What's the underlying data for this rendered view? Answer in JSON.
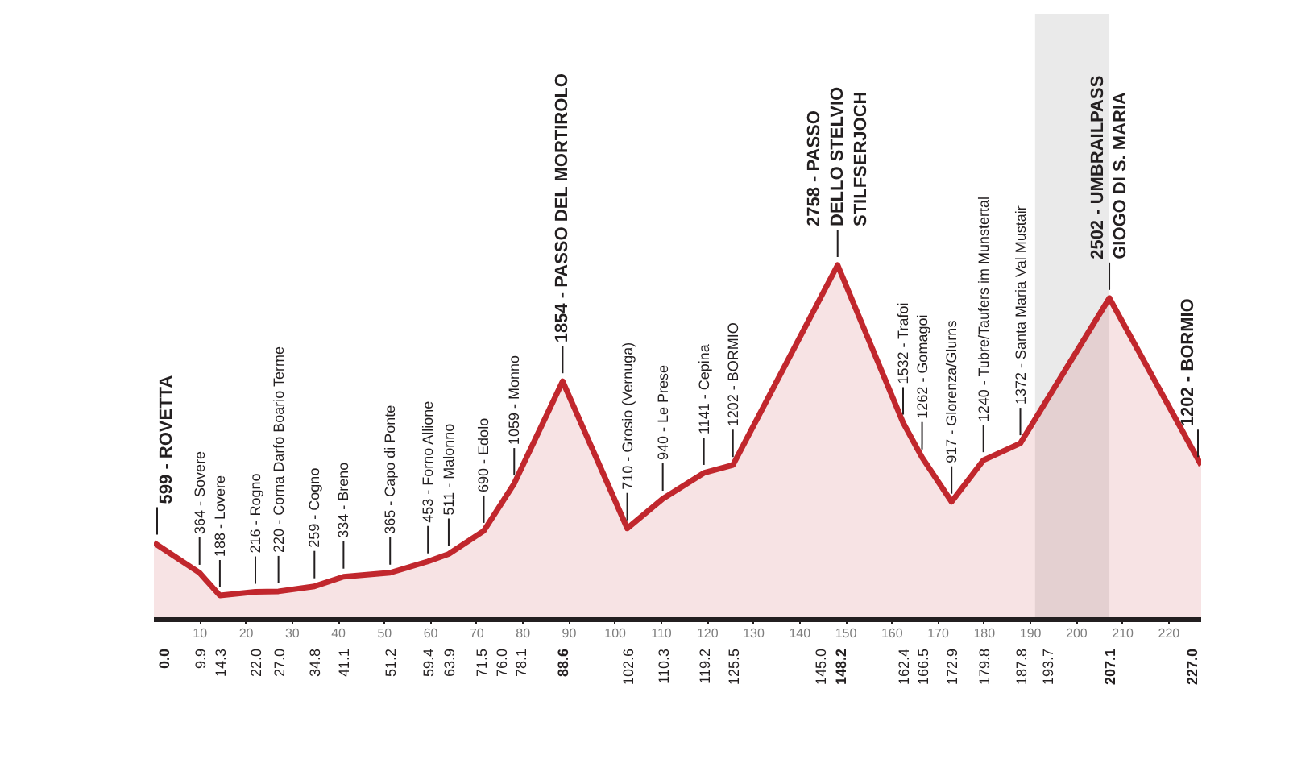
{
  "chart_data": {
    "type": "area",
    "x": [
      0,
      9.9,
      14.3,
      22.0,
      27.0,
      34.8,
      41.1,
      51.2,
      59.4,
      63.9,
      71.5,
      78.1,
      88.6,
      102.6,
      110.3,
      119.2,
      125.5,
      148.2,
      162.4,
      166.5,
      172.9,
      179.8,
      187.8,
      207.1,
      227.0
    ],
    "values": [
      599,
      364,
      188,
      216,
      220,
      259,
      334,
      365,
      453,
      511,
      690,
      1059,
      1854,
      710,
      940,
      1141,
      1202,
      2758,
      1532,
      1262,
      917,
      1240,
      1372,
      2502,
      1202
    ],
    "color": "#c1272d",
    "value_labels": [
      "599 - ROVETTA",
      "364 - Sovere",
      "188 - Lovere",
      "216 - Rogno",
      "220 - Corna Darfo Boario Terme",
      "259 - Cogno",
      "334 - Breno",
      "365 - Capo di Ponte",
      "453 - Forno Allione",
      "511 - Malonno",
      "690 - Edolo",
      "1059 - Monno",
      "1854 - PASSO DEL MORTIROLO",
      "710 - Grosio (Vernuga)",
      "940 - Le Prese",
      "1141 - Cepina",
      "1202 - BORMIO",
      "2758 - PASSO\nDELLO STELVIO\nSTILFSERJOCH",
      "1532 - Trafoi",
      "1262 - Gomagoi",
      "917 - Glorenza/Glurns",
      "1240 - Tubre/Taufers im Munstertal",
      "1372 - Santa Maria Val Mustair",
      "2502 - UMBRAILPASS\nGIOGO DI S. MARIA",
      "1202 - BORMIO"
    ],
    "xlim": [
      0,
      227
    ],
    "xticks": [
      10,
      20,
      30,
      40,
      50,
      60,
      70,
      80,
      90,
      100,
      110,
      120,
      130,
      140,
      150,
      160,
      170,
      180,
      190,
      200,
      210,
      220
    ],
    "tick_labels": "x",
    "annotations": [
      {
        "text": "0.0",
        "x": 0,
        "y": 0
      },
      {
        "text": "9.9",
        "x": 9.9,
        "y": 0
      },
      {
        "text": "14.3",
        "x": 14.3,
        "y": 0
      },
      {
        "text": "22.0",
        "x": 22.0,
        "y": 0
      },
      {
        "text": "27.0",
        "x": 27.0,
        "y": 0
      },
      {
        "text": "34.8",
        "x": 34.8,
        "y": 0
      },
      {
        "text": "41.1",
        "x": 41.1,
        "y": 0
      },
      {
        "text": "51.2",
        "x": 51.2,
        "y": 0
      },
      {
        "text": "59.4",
        "x": 59.4,
        "y": 0
      },
      {
        "text": "63.9",
        "x": 63.9,
        "y": 0
      },
      {
        "text": "71.5",
        "x": 71.5,
        "y": 0
      },
      {
        "text": "76.0",
        "x": 76.0,
        "y": 0
      },
      {
        "text": "78.1",
        "x": 78.1,
        "y": 0
      },
      {
        "text": "88.6",
        "x": 88.6,
        "y": 0
      },
      {
        "text": "102.6",
        "x": 102.6,
        "y": 0
      },
      {
        "text": "110.3",
        "x": 110.3,
        "y": 0
      },
      {
        "text": "119.2",
        "x": 119.2,
        "y": 0
      },
      {
        "text": "125.5",
        "x": 125.5,
        "y": 0
      },
      {
        "text": "145.0",
        "x": 145.0,
        "y": 0
      },
      {
        "text": "148.2",
        "x": 148.2,
        "y": 0
      },
      {
        "text": "162.4",
        "x": 162.4,
        "y": 0
      },
      {
        "text": "166.5",
        "x": 166.5,
        "y": 0
      },
      {
        "text": "172.9",
        "x": 172.9,
        "y": 0
      },
      {
        "text": "179.8",
        "x": 179.8,
        "y": 0
      },
      {
        "text": "187.8",
        "x": 187.8,
        "y": 0
      },
      {
        "text": "193.7",
        "x": 193.7,
        "y": 0
      },
      {
        "text": "207.1",
        "x": 207.1,
        "y": 0
      },
      {
        "text": "227.0",
        "x": 227.0,
        "y": 0
      }
    ],
    "bands": [
      {
        "axis": "x",
        "from": 191,
        "to": 207.1,
        "color": "#333333"
      }
    ]
  }
}
